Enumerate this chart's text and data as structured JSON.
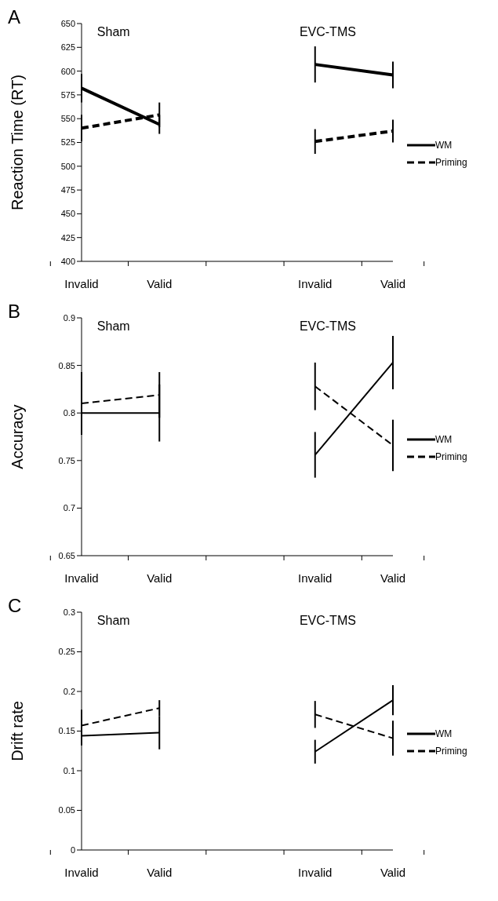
{
  "chart_data": [
    {
      "type": "line",
      "title": "A",
      "ylabel": "Reaction Time (RT)",
      "categories": [
        "Invalid",
        "Valid",
        null,
        "Invalid",
        "Valid"
      ],
      "ylim": [
        400,
        650
      ],
      "yticks": [
        400,
        425,
        450,
        475,
        500,
        525,
        550,
        575,
        600,
        625,
        650
      ],
      "annotations": [
        "Sham",
        "EVC-TMS"
      ],
      "legend": "right",
      "marker": "none",
      "grid": false,
      "series": [
        {
          "name": "WM",
          "color": "#000000",
          "line_style": "solid",
          "values": [
            582,
            544,
            null,
            607,
            596
          ],
          "errors": [
            15,
            10,
            null,
            19,
            14
          ]
        },
        {
          "name": "Priming",
          "color": "#000000",
          "line_style": "dashed",
          "values": [
            540,
            554,
            null,
            526,
            537
          ],
          "errors": [
            14,
            13,
            null,
            13,
            12
          ]
        }
      ]
    },
    {
      "type": "line",
      "title": "B",
      "ylabel": "Accuracy",
      "categories": [
        "Invalid",
        "Valid",
        null,
        "Invalid",
        "Valid"
      ],
      "ylim": [
        0.65,
        0.9
      ],
      "yticks": [
        0.65,
        0.7,
        0.75,
        0.8,
        0.85,
        0.9
      ],
      "annotations": [
        "Sham",
        "EVC-TMS"
      ],
      "legend": "right",
      "marker": "none",
      "grid": false,
      "series": [
        {
          "name": "WM",
          "color": "#000000",
          "line_style": "solid",
          "values": [
            0.8,
            0.8,
            null,
            0.756,
            0.853
          ],
          "errors": [
            0.022,
            0.03,
            null,
            0.024,
            0.028
          ]
        },
        {
          "name": "Priming",
          "color": "#000000",
          "line_style": "dashed",
          "values": [
            0.81,
            0.819,
            null,
            0.828,
            0.766
          ],
          "errors": [
            0.033,
            0.024,
            null,
            0.025,
            0.027
          ]
        }
      ]
    },
    {
      "type": "line",
      "title": "C",
      "ylabel": "Drift rate",
      "categories": [
        "Invalid",
        "Valid",
        null,
        "Invalid",
        "Valid"
      ],
      "ylim": [
        0,
        0.3
      ],
      "yticks": [
        0,
        0.05,
        0.1,
        0.15,
        0.2,
        0.25,
        0.3
      ],
      "annotations": [
        "Sham",
        "EVC-TMS"
      ],
      "legend": "right",
      "marker": "none",
      "grid": false,
      "series": [
        {
          "name": "WM",
          "color": "#000000",
          "line_style": "solid",
          "values": [
            0.144,
            0.148,
            null,
            0.124,
            0.189
          ],
          "errors": [
            0.012,
            0.021,
            null,
            0.015,
            0.019
          ]
        },
        {
          "name": "Priming",
          "color": "#000000",
          "line_style": "dashed",
          "values": [
            0.157,
            0.179,
            null,
            0.171,
            0.141
          ],
          "errors": [
            0.02,
            0.01,
            null,
            0.017,
            0.022
          ]
        }
      ]
    }
  ]
}
